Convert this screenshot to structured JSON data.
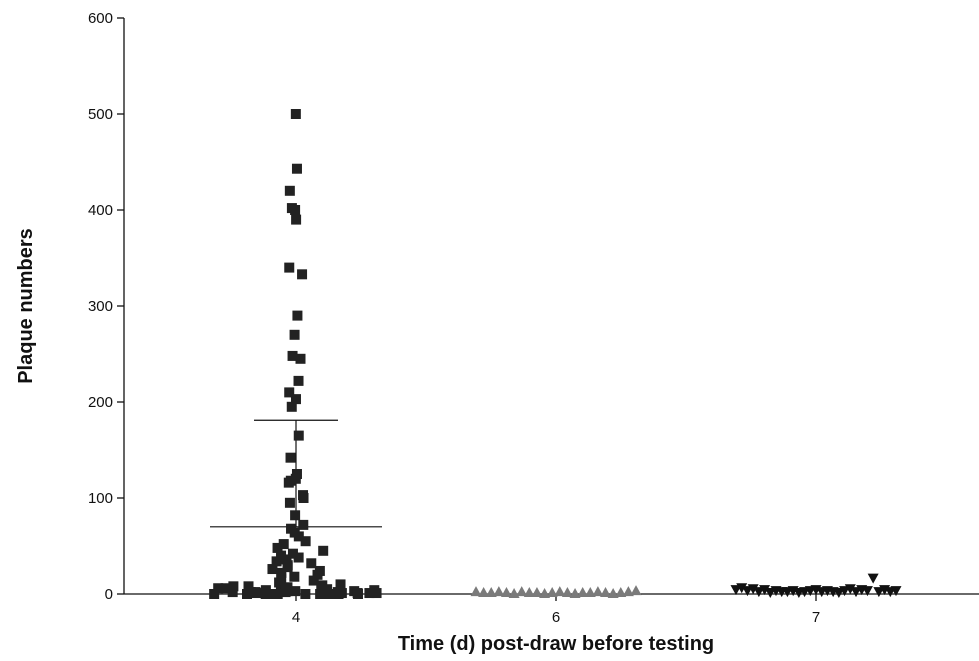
{
  "chart_data": {
    "type": "scatter",
    "xlabel": "Time (d) post-draw before testing",
    "ylabel": "Plaque numbers",
    "categories": [
      "4",
      "6",
      "7"
    ],
    "ylim": [
      0,
      600
    ],
    "yticks": [
      0,
      100,
      200,
      300,
      400,
      500,
      600
    ],
    "grid": false,
    "series": [
      {
        "category": "4",
        "marker": "square",
        "color": "#222222",
        "mean": 70,
        "sd_upper": 181,
        "values": [
          500,
          443,
          420,
          402,
          400,
          390,
          340,
          333,
          290,
          270,
          248,
          245,
          222,
          210,
          203,
          195,
          165,
          142,
          125,
          120,
          118,
          116,
          103,
          100,
          95,
          82,
          72,
          68,
          64,
          60,
          55,
          52,
          48,
          45,
          42,
          40,
          38,
          36,
          34,
          32,
          30,
          28,
          26,
          24,
          22,
          20,
          18,
          16,
          14,
          12,
          10,
          9,
          8,
          8,
          7,
          6,
          6,
          5,
          5,
          5,
          4,
          4,
          4,
          3,
          3,
          3,
          3,
          2,
          2,
          2,
          2,
          2,
          1,
          1,
          1,
          1,
          1,
          0,
          0,
          0,
          0,
          0,
          0,
          0,
          0,
          0,
          0,
          0
        ]
      },
      {
        "category": "6",
        "marker": "triangle-up",
        "color": "#7a7a7a",
        "values": [
          2,
          1,
          1,
          2,
          1,
          0,
          2,
          1,
          1,
          0,
          1,
          2,
          1,
          0,
          1,
          1,
          2,
          1,
          0,
          1,
          2,
          3
        ]
      },
      {
        "category": "7",
        "marker": "triangle-down",
        "color": "#111111",
        "values": [
          4,
          6,
          3,
          5,
          2,
          4,
          1,
          3,
          2,
          2,
          3,
          1,
          2,
          3,
          4,
          2,
          3,
          2,
          1,
          3,
          5,
          2,
          4,
          3,
          16,
          2,
          4,
          2,
          3
        ]
      }
    ]
  }
}
